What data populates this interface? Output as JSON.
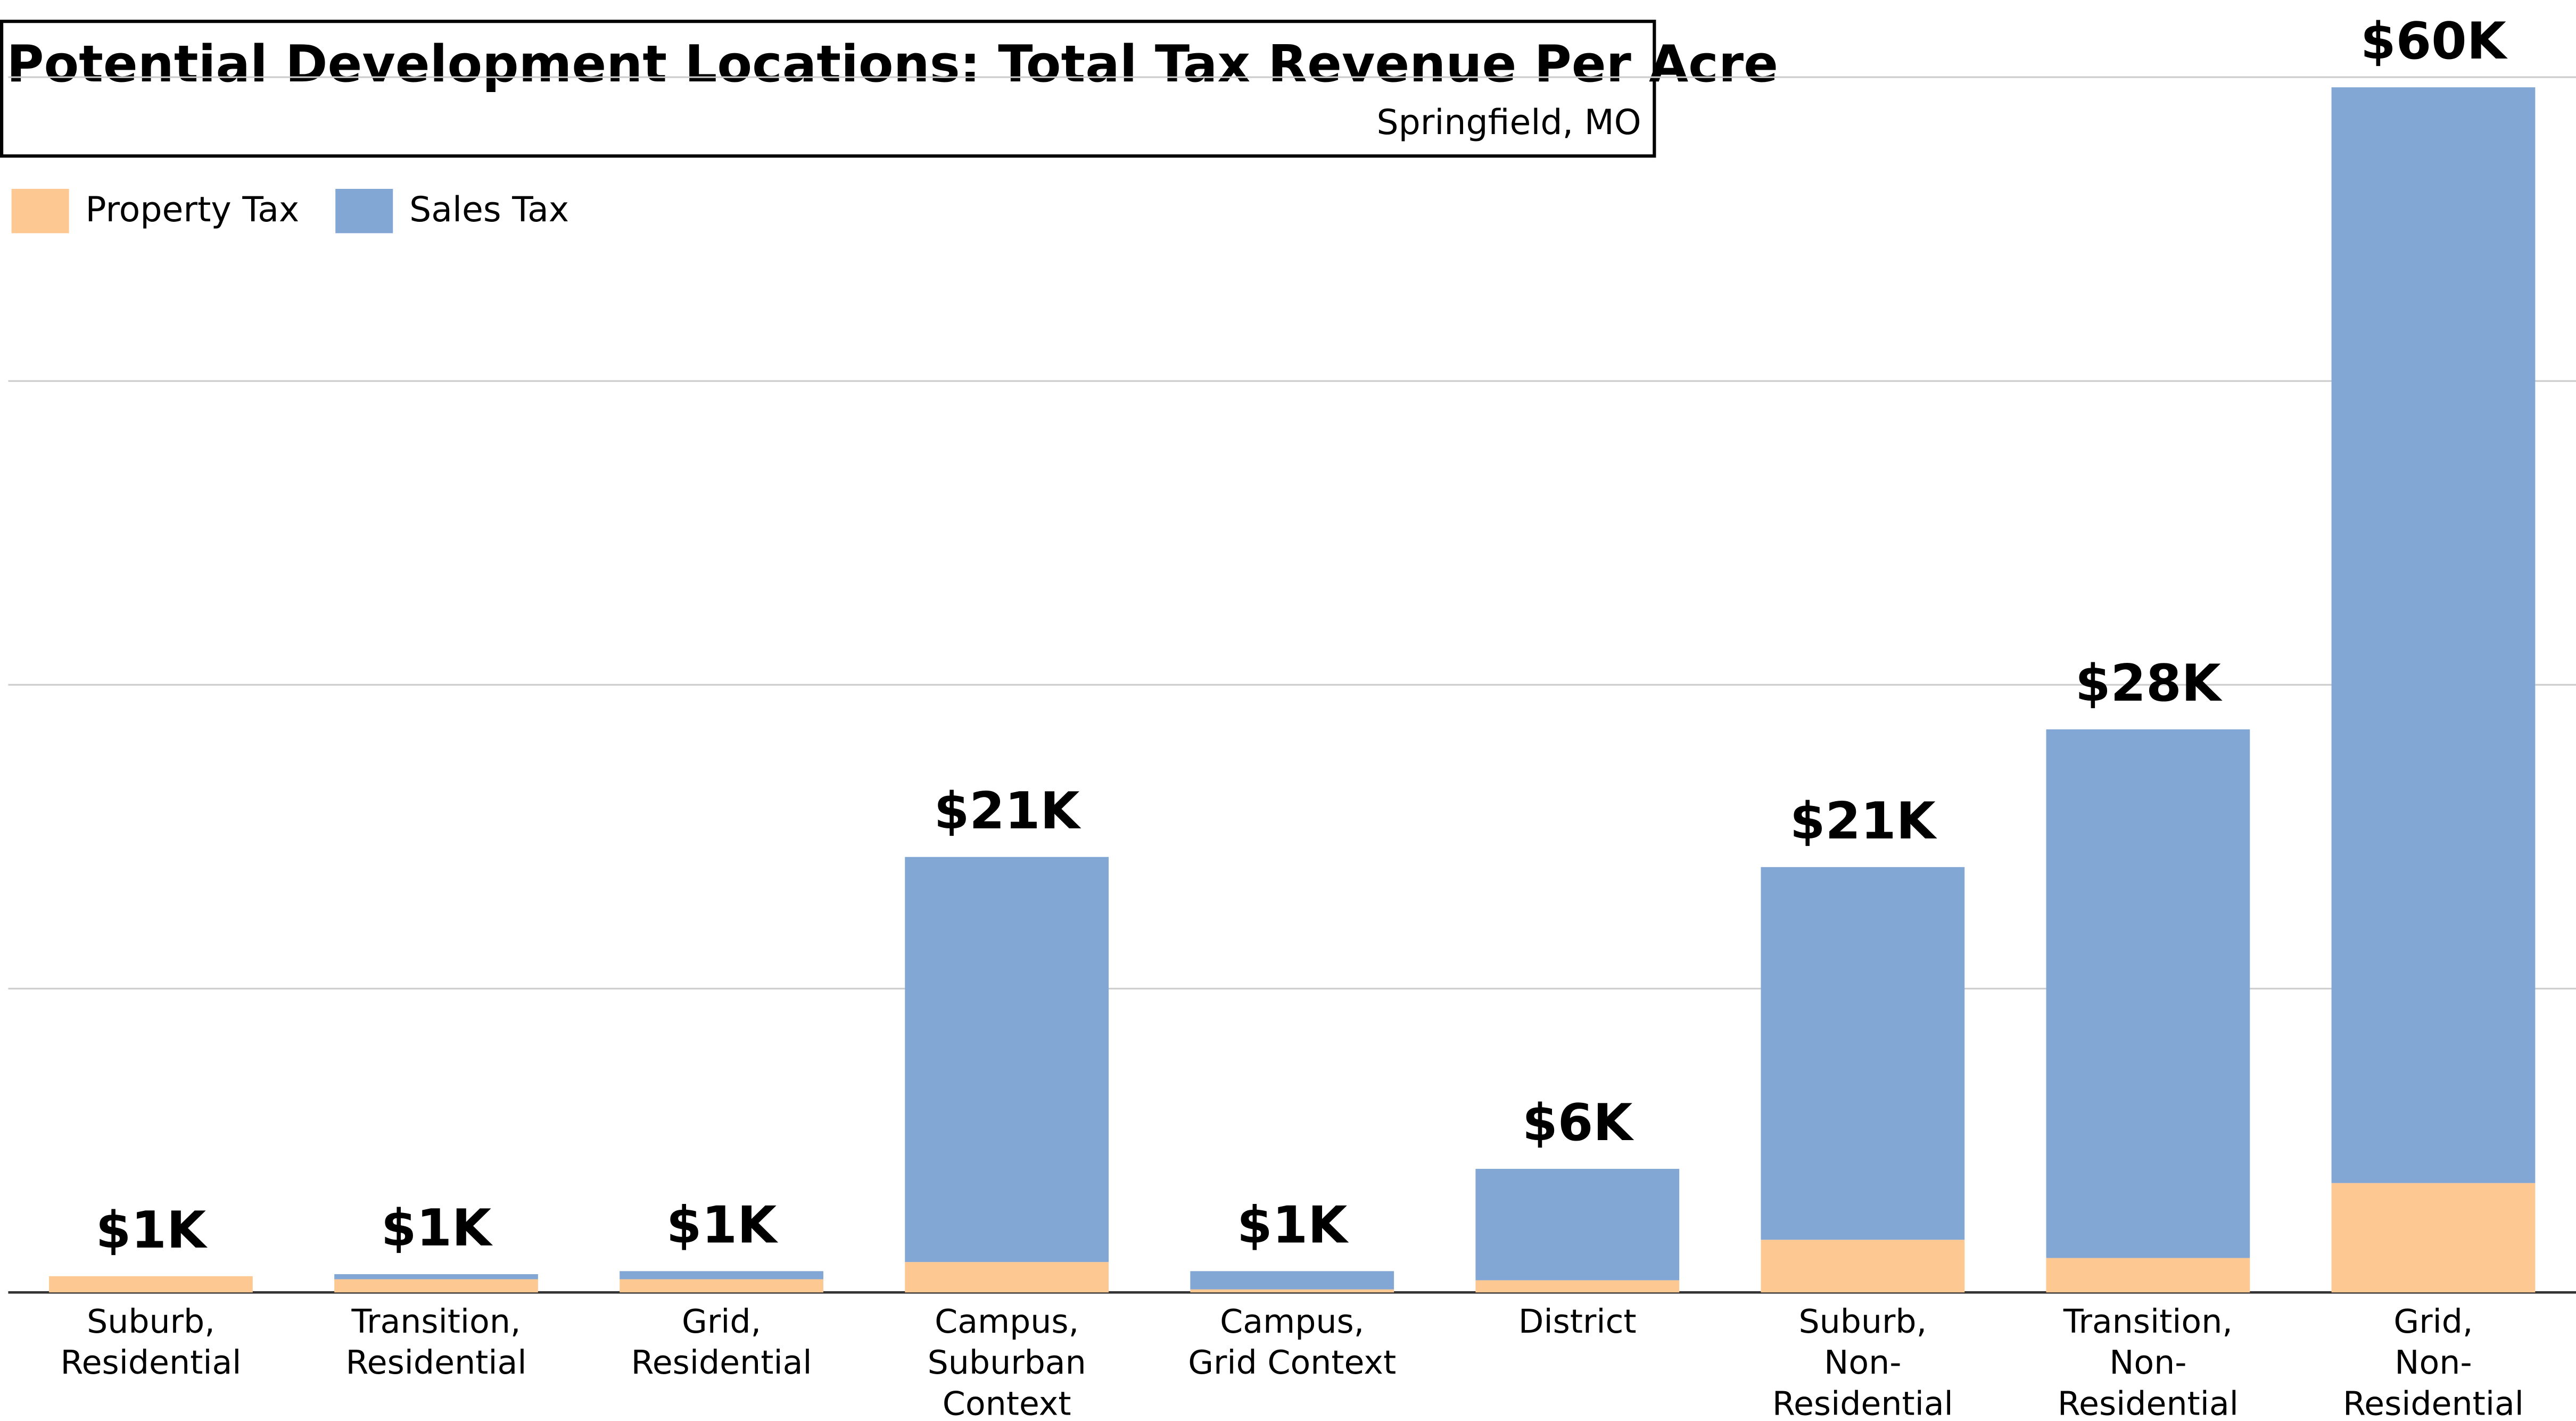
{
  "chart_data": {
    "type": "stacked_bar",
    "title": "Potential Development Locations: Total Tax Revenue Per Acre",
    "subtitle": "Springfield, MO",
    "categories": [
      [
        "Suburb,",
        "Residential"
      ],
      [
        "Transition,",
        "Residential"
      ],
      [
        "Grid,",
        "Residential"
      ],
      [
        "Campus,",
        "Suburban",
        "Context"
      ],
      [
        "Campus,",
        "Grid Context"
      ],
      [
        "District"
      ],
      [
        "Suburb,",
        "Non-",
        "Residential"
      ],
      [
        "Transition,",
        "Non-",
        "Residential"
      ],
      [
        "Grid,",
        "Non-",
        "Residential"
      ]
    ],
    "series": [
      {
        "name": "Property Tax",
        "color": "#fdc892",
        "values": [
          800,
          650,
          650,
          1500,
          150,
          600,
          2600,
          1700,
          5400
        ]
      },
      {
        "name": "Sales Tax",
        "color": "#82a7d4",
        "values": [
          0,
          250,
          400,
          20000,
          900,
          5500,
          18400,
          26100,
          54100
        ]
      }
    ],
    "value_labels": [
      "$1K",
      "$1K",
      "$1K",
      "$21K",
      "$1K",
      "$6K",
      "$21K",
      "$28K",
      "$60K"
    ],
    "ylim": [
      0,
      60000
    ],
    "yticks": [
      0,
      15000,
      30000,
      45000,
      60000
    ],
    "grid": true,
    "legend": "top-left"
  }
}
